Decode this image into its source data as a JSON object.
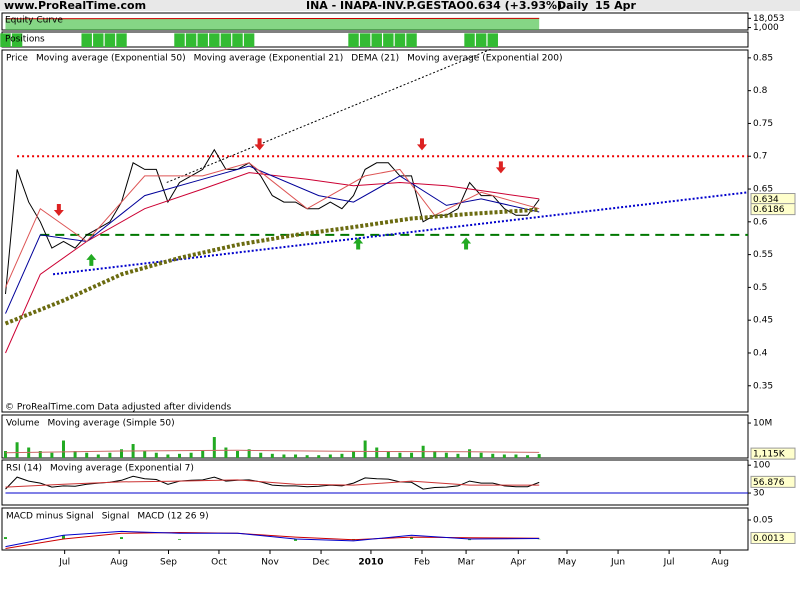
{
  "header": {
    "site": "www.ProRealTime.com",
    "instrument": "INA - INAPA-INV.P.GESTAO",
    "quote": "0.634 (+3.93%)",
    "period": "Daily",
    "date": "15 Apr"
  },
  "chart_data": [
    {
      "type": "area",
      "title": "Equity Curve",
      "x": [
        0,
        46
      ],
      "series": [
        {
          "style": "area",
          "color": "#cc0000",
          "fill": "#33bb33",
          "values": [
            17500,
            18053
          ]
        }
      ],
      "ylim": [
        -3500,
        28000
      ],
      "yticks": [
        {
          "value": 18053,
          "label": "18,053"
        },
        {
          "value": 1000,
          "label": "1,000"
        }
      ]
    },
    {
      "type": "bar",
      "title": "Positions",
      "x": [
        0,
        1,
        2,
        3,
        4,
        5,
        6,
        7,
        8,
        9,
        10,
        11,
        12,
        13,
        14,
        15,
        16,
        17,
        18,
        19,
        20,
        21,
        22,
        23,
        24,
        25,
        26,
        27,
        28,
        29,
        30,
        31,
        32,
        33,
        34,
        35,
        36,
        37,
        38,
        39,
        40,
        41,
        42,
        43,
        44,
        45,
        46
      ],
      "series": [
        {
          "style": "bar",
          "color": "#33bb33",
          "values": [
            1,
            1,
            0,
            0,
            0,
            0,
            0,
            1,
            1,
            1,
            1,
            0,
            0,
            0,
            0,
            1,
            1,
            1,
            1,
            1,
            1,
            1,
            0,
            0,
            0,
            0,
            0,
            0,
            0,
            0,
            1,
            1,
            1,
            1,
            1,
            1,
            0,
            0,
            0,
            0,
            1,
            1,
            1,
            0,
            0,
            0,
            0
          ]
        }
      ],
      "ylim": [
        0,
        1.1
      ],
      "yticks": []
    },
    {
      "type": "line",
      "x": [
        0,
        1,
        2,
        3,
        4,
        5,
        6,
        7,
        8,
        9,
        10,
        11,
        12,
        13,
        14,
        15,
        16,
        17,
        18,
        19,
        20,
        21,
        22,
        23,
        24,
        25,
        26,
        27,
        28,
        29,
        30,
        31,
        32,
        33,
        34,
        35,
        36,
        37,
        38,
        39,
        40,
        41,
        42,
        43,
        44,
        45,
        46
      ],
      "series": [
        {
          "name": "Price",
          "style": "line",
          "color": "#000000",
          "tag": true,
          "values": [
            0.49,
            0.68,
            0.63,
            0.6,
            0.56,
            0.57,
            0.56,
            0.58,
            0.59,
            0.6,
            0.63,
            0.69,
            0.68,
            0.68,
            0.63,
            0.66,
            0.67,
            0.68,
            0.71,
            0.68,
            0.68,
            0.69,
            0.67,
            0.64,
            0.63,
            0.63,
            0.62,
            0.62,
            0.63,
            0.62,
            0.64,
            0.68,
            0.69,
            0.69,
            0.67,
            0.67,
            0.6,
            0.61,
            0.61,
            0.62,
            0.66,
            0.64,
            0.64,
            0.62,
            0.61,
            0.61,
            0.634
          ]
        },
        {
          "name": "Moving average (Exponential 50)",
          "style": "line",
          "color": "#cc0033",
          "x": [
            0,
            3,
            7,
            12,
            17,
            21,
            26,
            30,
            34,
            38,
            42,
            46
          ],
          "values": [
            0.4,
            0.52,
            0.57,
            0.62,
            0.65,
            0.675,
            0.665,
            0.655,
            0.66,
            0.655,
            0.645,
            0.635
          ]
        },
        {
          "name": "Moving average (Exponential 21)",
          "style": "line",
          "color": "#000099",
          "x": [
            0,
            3,
            7,
            12,
            17,
            21,
            27,
            30,
            34,
            38,
            41,
            46
          ],
          "values": [
            0.46,
            0.58,
            0.57,
            0.64,
            0.665,
            0.685,
            0.64,
            0.63,
            0.67,
            0.625,
            0.635,
            0.615
          ]
        },
        {
          "name": "DEMA (21)",
          "style": "line",
          "color": "#dd5555",
          "x": [
            0,
            3,
            7,
            12,
            17,
            21,
            26,
            31,
            34,
            37,
            41,
            46
          ],
          "values": [
            0.5,
            0.62,
            0.57,
            0.67,
            0.67,
            0.69,
            0.62,
            0.67,
            0.68,
            0.61,
            0.645,
            0.62
          ]
        },
        {
          "name": "Moving average (Exponential 200)",
          "style": "dotted",
          "color": "#6b6b10",
          "tag": true,
          "x": [
            0,
            5,
            10,
            15,
            20,
            25,
            30,
            35,
            40,
            46
          ],
          "values": [
            0.445,
            0.48,
            0.52,
            0.545,
            0.565,
            0.58,
            0.592,
            0.605,
            0.612,
            0.6186
          ]
        }
      ],
      "levels": [
        {
          "value": 0.7,
          "x_from": 1,
          "color": "#ee0000",
          "dash": "2 3"
        },
        {
          "value": 0.58,
          "x_from": 3,
          "color": "#007700",
          "dash": "9 6"
        }
      ],
      "trendlines": [
        {
          "x": [
            4.1,
            64
          ],
          "values": [
            0.52,
            0.645
          ],
          "color": "#0000cc"
        },
        {
          "x": [
            13.9,
            41.8
          ],
          "values": [
            0.66,
            0.863
          ],
          "color": "#000000"
        }
      ],
      "signals": {
        "sell": {
          "color": "#dd2222",
          "x": [
            4.6,
            21.9,
            35.9,
            42.7
          ],
          "values": [
            0.615,
            0.715,
            0.715,
            0.68
          ]
        },
        "buy": {
          "color": "#22aa22",
          "x": [
            7.4,
            30.4,
            39.7
          ],
          "values": [
            0.545,
            0.57,
            0.57
          ]
        }
      },
      "footnote": "© ProRealTime.com  Data adjusted after dividends",
      "ylim": [
        0.31,
        0.862
      ],
      "yticks": [
        0.85,
        0.8,
        0.75,
        0.7,
        0.65,
        0.6,
        0.55,
        0.5,
        0.45,
        0.4,
        0.35
      ]
    },
    {
      "type": "bar",
      "x": [
        0,
        1,
        2,
        3,
        4,
        5,
        6,
        7,
        8,
        9,
        10,
        11,
        12,
        13,
        14,
        15,
        16,
        17,
        18,
        19,
        20,
        21,
        22,
        23,
        24,
        25,
        26,
        27,
        28,
        29,
        30,
        31,
        32,
        33,
        34,
        35,
        36,
        37,
        38,
        39,
        40,
        41,
        42,
        43,
        44,
        45,
        46
      ],
      "series": [
        {
          "name": "Volume",
          "style": "bar",
          "color": "#22aa22",
          "tag": true,
          "values": [
            2000000,
            4500000,
            3000000,
            2000000,
            1500000,
            5000000,
            2000000,
            1500000,
            1000000,
            1500000,
            2500000,
            4000000,
            2000000,
            1500000,
            1000000,
            1200000,
            1500000,
            2000000,
            6000000,
            3000000,
            2000000,
            2500000,
            1500000,
            1200000,
            1000000,
            1000000,
            800000,
            800000,
            1000000,
            1200000,
            2000000,
            5000000,
            3000000,
            2000000,
            1500000,
            1500000,
            3500000,
            2000000,
            1500000,
            1200000,
            2500000,
            1500000,
            1200000,
            1000000,
            1000000,
            800000,
            1115000
          ],
          "value_labels": [
            null,
            null,
            null,
            null,
            null,
            null,
            null,
            null,
            null,
            null,
            null,
            null,
            null,
            null,
            null,
            null,
            null,
            null,
            null,
            null,
            null,
            null,
            null,
            null,
            null,
            null,
            null,
            null,
            null,
            null,
            null,
            null,
            null,
            null,
            null,
            null,
            null,
            null,
            null,
            null,
            null,
            null,
            null,
            null,
            null,
            null,
            "1,115K"
          ]
        },
        {
          "name": "Moving average (Simple 50)",
          "style": "line",
          "color": "#cc6666",
          "x": [
            0,
            10,
            20,
            30,
            40,
            46
          ],
          "values": [
            1500000,
            2000000,
            2200000,
            1900000,
            1800000,
            1600000
          ]
        }
      ],
      "ylim": [
        0,
        12300000
      ],
      "yticks": [
        {
          "value": 10000000,
          "label": "10M"
        }
      ]
    },
    {
      "type": "line",
      "x": [
        0,
        1,
        2,
        3,
        4,
        5,
        6,
        7,
        8,
        9,
        10,
        11,
        12,
        13,
        14,
        15,
        16,
        17,
        18,
        19,
        20,
        21,
        22,
        23,
        24,
        25,
        26,
        27,
        28,
        29,
        30,
        31,
        32,
        33,
        34,
        35,
        36,
        37,
        38,
        39,
        40,
        41,
        42,
        43,
        44,
        45,
        46
      ],
      "series": [
        {
          "name": "RSI (14)",
          "style": "line",
          "color": "#000000",
          "tag": true,
          "values": [
            40,
            70,
            60,
            55,
            45,
            48,
            47,
            52,
            55,
            57,
            62,
            72,
            66,
            64,
            52,
            60,
            62,
            63,
            70,
            60,
            62,
            63,
            58,
            50,
            48,
            48,
            46,
            47,
            50,
            48,
            55,
            68,
            66,
            65,
            58,
            57,
            40,
            44,
            45,
            48,
            60,
            55,
            55,
            48,
            46,
            46,
            56.876
          ]
        },
        {
          "name": "Moving average (Exponential 7)",
          "style": "line",
          "color": "#cc3333",
          "x": [
            0,
            5,
            10,
            15,
            20,
            25,
            30,
            35,
            40,
            46
          ],
          "values": [
            45,
            52,
            58,
            60,
            63,
            52,
            50,
            60,
            50,
            50
          ]
        }
      ],
      "levels": [
        {
          "value": 30,
          "x_from": 0,
          "color": "#0000cc",
          "dash": "none"
        }
      ],
      "ylim": [
        0,
        113
      ],
      "yticks": [
        100,
        30
      ]
    },
    {
      "type": "line",
      "x": [
        0,
        5,
        10,
        15,
        20,
        25,
        30,
        35,
        40,
        46
      ],
      "series": [
        {
          "name": "MACD minus Signal",
          "style": "bar",
          "color": "#22aa22",
          "values": [
            0.005,
            0.01,
            0.005,
            -0.002,
            0,
            -0.005,
            -0.003,
            0.005,
            -0.003,
            -0.0007
          ]
        },
        {
          "name": "Signal",
          "style": "line",
          "color": "#cc0000",
          "values": [
            -0.025,
            0,
            0.015,
            0.017,
            0.015,
            0.005,
            -0.002,
            0.005,
            0.003,
            0.002
          ]
        },
        {
          "name": "MACD (12 26 9)",
          "style": "line",
          "color": "#0000cc",
          "tag": true,
          "values": [
            -0.02,
            0.01,
            0.02,
            0.015,
            0.015,
            0,
            -0.005,
            0.01,
            0,
            0.0013
          ]
        }
      ],
      "ylim": [
        -0.029,
        0.0816
      ],
      "yticks": [
        0.05
      ]
    }
  ],
  "xlim": [
    -0.3,
    64
  ],
  "xticks": [
    {
      "value": 5.1,
      "label": "Jul"
    },
    {
      "value": 9.8,
      "label": "Aug"
    },
    {
      "value": 14.05,
      "label": "Sep"
    },
    {
      "value": 18.4,
      "label": "Oct"
    },
    {
      "value": 22.8,
      "label": "Nov"
    },
    {
      "value": 27.2,
      "label": "Dec"
    },
    {
      "value": 31.5,
      "label": "2010"
    },
    {
      "value": 35.9,
      "label": "Feb"
    },
    {
      "value": 39.7,
      "label": "Mar"
    },
    {
      "value": 44.2,
      "label": "Apr"
    },
    {
      "value": 48.4,
      "label": "May"
    },
    {
      "value": 52.8,
      "label": "Jun"
    },
    {
      "value": 57.2,
      "label": "Jul"
    },
    {
      "value": 61.6,
      "label": "Aug"
    }
  ]
}
